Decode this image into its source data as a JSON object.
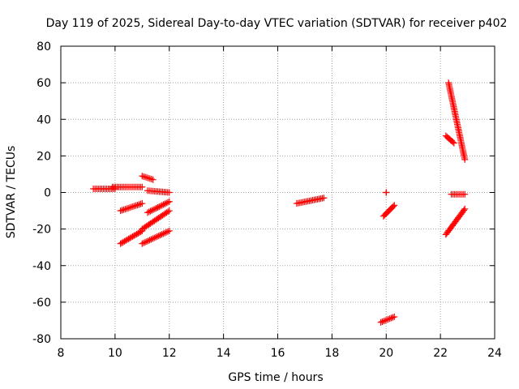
{
  "chart_data": {
    "type": "scatter",
    "title": "Day 119 of 2025, Sidereal Day-to-day VTEC variation (SDTVAR) for receiver p402",
    "xlabel": "GPS time / hours",
    "ylabel": "SDTVAR / TECUs",
    "xlim": [
      8,
      24
    ],
    "ylim": [
      -80,
      80
    ],
    "xticks": [
      "8",
      "10",
      "12",
      "14",
      "16",
      "18",
      "20",
      "22",
      "24"
    ],
    "yticks": [
      "80",
      "60",
      "40",
      "20",
      "0",
      "-20",
      "-40",
      "-60",
      "-80"
    ],
    "xtick_values": [
      8,
      10,
      12,
      14,
      16,
      18,
      20,
      22,
      24
    ],
    "ytick_values": [
      80,
      60,
      40,
      20,
      0,
      -20,
      -40,
      -60,
      -80
    ],
    "grid": true,
    "marker": "+",
    "marker_color": "#ff0000",
    "series": [
      {
        "segments": [
          {
            "x": [
              9.2,
              10.0
            ],
            "y": [
              2,
              2
            ]
          },
          {
            "x": [
              9.9,
              11.0
            ],
            "y": [
              3,
              3
            ]
          },
          {
            "x": [
              11.2,
              12.0
            ],
            "y": [
              1,
              0
            ]
          },
          {
            "x": [
              11.0,
              11.4
            ],
            "y": [
              9,
              7
            ]
          },
          {
            "x": [
              10.2,
              11.0
            ],
            "y": [
              -10,
              -6
            ]
          },
          {
            "x": [
              11.2,
              12.0
            ],
            "y": [
              -11,
              -5
            ]
          },
          {
            "x": [
              11.0,
              12.0
            ],
            "y": [
              -20,
              -10
            ]
          },
          {
            "x": [
              10.2,
              11.0
            ],
            "y": [
              -28,
              -21
            ]
          },
          {
            "x": [
              11.0,
              12.0
            ],
            "y": [
              -28,
              -21
            ]
          },
          {
            "x": [
              16.7,
              17.7
            ],
            "y": [
              -6,
              -3
            ]
          },
          {
            "x": [
              20.0,
              20.0
            ],
            "y": [
              0,
              0
            ]
          },
          {
            "x": [
              19.9,
              20.3
            ],
            "y": [
              -13,
              -7
            ]
          },
          {
            "x": [
              19.8,
              20.3
            ],
            "y": [
              -71,
              -68
            ]
          },
          {
            "x": [
              22.2,
              22.5
            ],
            "y": [
              31,
              27
            ]
          },
          {
            "x": [
              22.3,
              22.9
            ],
            "y": [
              60,
              18
            ]
          },
          {
            "x": [
              22.4,
              22.9
            ],
            "y": [
              -1,
              -1
            ]
          },
          {
            "x": [
              22.2,
              22.9
            ],
            "y": [
              -23,
              -9
            ]
          }
        ]
      }
    ]
  }
}
